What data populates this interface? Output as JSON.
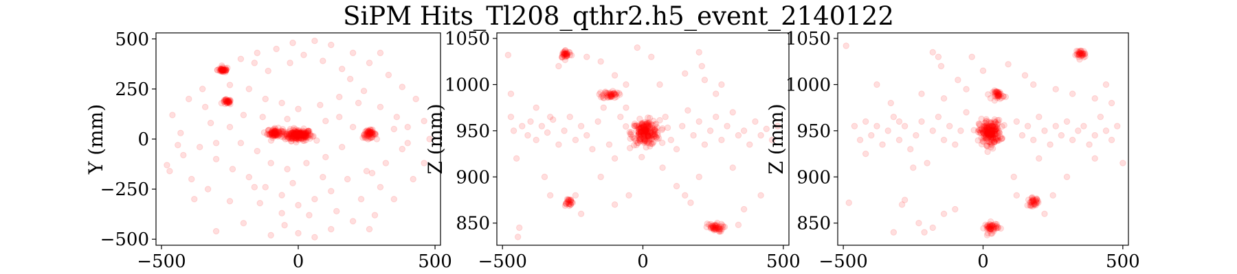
{
  "chart_data": {
    "type": "scatter",
    "title": "SiPM Hits_Tl208_qthr2.h5_event_2140122",
    "marker_color": "#ff0000",
    "marker_alpha": 0.13,
    "panels": [
      {
        "id": "xy",
        "xlabel": "",
        "ylabel": "Y (mm)",
        "xlim": [
          -520,
          520
        ],
        "ylim": [
          -530,
          530
        ],
        "xticks": [
          -500,
          0,
          500
        ],
        "xtick_labels": [
          "−500",
          "0",
          "500"
        ],
        "yticks": [
          -500,
          -250,
          0,
          250,
          500
        ],
        "ytick_labels": [
          "−500",
          "−250",
          "0",
          "250",
          "500"
        ],
        "clusters": [
          {
            "x": 0,
            "y": 20,
            "count": 200,
            "sx": 45,
            "sy": 25
          },
          {
            "x": -85,
            "y": 30,
            "count": 80,
            "sx": 25,
            "sy": 20
          },
          {
            "x": 260,
            "y": 25,
            "count": 60,
            "sx": 22,
            "sy": 18
          },
          {
            "x": -275,
            "y": 345,
            "count": 45,
            "sx": 18,
            "sy": 12
          },
          {
            "x": -260,
            "y": 185,
            "count": 35,
            "sx": 14,
            "sy": 12
          }
        ],
        "scatter_points": [
          [
            -470,
            -160
          ],
          [
            -480,
            -130
          ],
          [
            -430,
            30
          ],
          [
            -460,
            120
          ],
          [
            -400,
            200
          ],
          [
            -350,
            250
          ],
          [
            -320,
            80
          ],
          [
            -300,
            -20
          ],
          [
            -420,
            -80
          ],
          [
            -380,
            -300
          ],
          [
            -300,
            -460
          ],
          [
            -200,
            -420
          ],
          [
            -100,
            -480
          ],
          [
            -50,
            -430
          ],
          [
            0,
            -470
          ],
          [
            60,
            -490
          ],
          [
            120,
            -450
          ],
          [
            200,
            -410
          ],
          [
            280,
            -380
          ],
          [
            350,
            -300
          ],
          [
            420,
            -200
          ],
          [
            460,
            -120
          ],
          [
            480,
            0
          ],
          [
            460,
            90
          ],
          [
            430,
            200
          ],
          [
            380,
            260
          ],
          [
            330,
            320
          ],
          [
            260,
            380
          ],
          [
            200,
            430
          ],
          [
            120,
            470
          ],
          [
            60,
            490
          ],
          [
            -20,
            480
          ],
          [
            -80,
            450
          ],
          [
            -150,
            430
          ],
          [
            -210,
            400
          ],
          [
            -250,
            270
          ],
          [
            -180,
            250
          ],
          [
            -120,
            200
          ],
          [
            -60,
            180
          ],
          [
            0,
            150
          ],
          [
            80,
            170
          ],
          [
            150,
            210
          ],
          [
            220,
            180
          ],
          [
            300,
            160
          ],
          [
            360,
            110
          ],
          [
            400,
            60
          ],
          [
            380,
            -50
          ],
          [
            320,
            -120
          ],
          [
            250,
            -160
          ],
          [
            180,
            -200
          ],
          [
            120,
            -260
          ],
          [
            60,
            -300
          ],
          [
            0,
            -330
          ],
          [
            -60,
            -280
          ],
          [
            -120,
            -240
          ],
          [
            -180,
            -190
          ],
          [
            -240,
            -150
          ],
          [
            -300,
            -100
          ],
          [
            -360,
            -40
          ],
          [
            -150,
            -60
          ],
          [
            -100,
            -120
          ],
          [
            -40,
            -150
          ],
          [
            30,
            -120
          ],
          [
            100,
            -90
          ],
          [
            160,
            -40
          ],
          [
            200,
            60
          ],
          [
            150,
            110
          ],
          [
            100,
            90
          ],
          [
            -40,
            100
          ],
          [
            -130,
            110
          ],
          [
            -200,
            120
          ],
          [
            -250,
            60
          ],
          [
            -210,
            -20
          ],
          [
            -160,
            -240
          ],
          [
            -60,
            -370
          ],
          [
            40,
            -380
          ],
          [
            140,
            -360
          ],
          [
            230,
            -300
          ],
          [
            300,
            -240
          ],
          [
            400,
            -20
          ],
          [
            -30,
            380
          ],
          [
            20,
            420
          ],
          [
            90,
            390
          ],
          [
            160,
            350
          ],
          [
            -110,
            340
          ],
          [
            -160,
            380
          ],
          [
            -340,
            160
          ],
          [
            -390,
            -200
          ],
          [
            -250,
            -310
          ],
          [
            270,
            -170
          ],
          [
            260,
            -450
          ],
          [
            -140,
            -320
          ],
          [
            90,
            -190
          ],
          [
            -20,
            -220
          ],
          [
            190,
            300
          ],
          [
            240,
            240
          ],
          [
            350,
            50
          ],
          [
            -440,
            -30
          ],
          [
            -330,
            -250
          ],
          [
            300,
            430
          ]
        ]
      },
      {
        "id": "xz",
        "xlabel": "",
        "ylabel": "Z (mm)",
        "xlim": [
          -520,
          520
        ],
        "ylim": [
          826,
          1056
        ],
        "xticks": [
          -500,
          0,
          500
        ],
        "xtick_labels": [
          "−500",
          "0",
          "500"
        ],
        "yticks": [
          850,
          900,
          950,
          1000,
          1050
        ],
        "ytick_labels": [
          "850",
          "900",
          "950",
          "1000",
          "1050"
        ],
        "clusters": [
          {
            "x": 10,
            "y": 948,
            "count": 220,
            "sx": 45,
            "sy": 12
          },
          {
            "x": -275,
            "y": 1033,
            "count": 35,
            "sx": 18,
            "sy": 4
          },
          {
            "x": -115,
            "y": 989,
            "count": 45,
            "sx": 25,
            "sy": 4
          },
          {
            "x": -265,
            "y": 873,
            "count": 25,
            "sx": 15,
            "sy": 4
          },
          {
            "x": 255,
            "y": 845,
            "count": 50,
            "sx": 28,
            "sy": 4
          }
        ],
        "scatter_points": [
          [
            -480,
            1032
          ],
          [
            -470,
            990
          ],
          [
            -460,
            950
          ],
          [
            -450,
            920
          ],
          [
            -430,
            955
          ],
          [
            -410,
            945
          ],
          [
            -400,
            960
          ],
          [
            -380,
            940
          ],
          [
            -360,
            955
          ],
          [
            -340,
            948
          ],
          [
            -320,
            962
          ],
          [
            -300,
            935
          ],
          [
            -280,
            950
          ],
          [
            -260,
            965
          ],
          [
            -240,
            940
          ],
          [
            -220,
            955
          ],
          [
            -200,
            945
          ],
          [
            -180,
            930
          ],
          [
            -160,
            960
          ],
          [
            -140,
            975
          ],
          [
            -120,
            935
          ],
          [
            -100,
            920
          ],
          [
            -80,
            965
          ],
          [
            -60,
            975
          ],
          [
            80,
            965
          ],
          [
            100,
            940
          ],
          [
            120,
            930
          ],
          [
            140,
            955
          ],
          [
            160,
            972
          ],
          [
            180,
            945
          ],
          [
            200,
            960
          ],
          [
            220,
            935
          ],
          [
            240,
            950
          ],
          [
            260,
            965
          ],
          [
            280,
            940
          ],
          [
            300,
            955
          ],
          [
            320,
            970
          ],
          [
            340,
            945
          ],
          [
            360,
            950
          ],
          [
            380,
            935
          ],
          [
            400,
            960
          ],
          [
            420,
            945
          ],
          [
            440,
            952
          ],
          [
            460,
            940
          ],
          [
            480,
            955
          ],
          [
            -440,
            845
          ],
          [
            -445,
            835
          ],
          [
            -300,
            1020
          ],
          [
            -200,
            1030
          ],
          [
            -150,
            1025
          ],
          [
            200,
            1035
          ],
          [
            210,
            1020
          ],
          [
            -100,
            1010
          ],
          [
            -60,
            1000
          ],
          [
            60,
            1000
          ],
          [
            150,
            1012
          ],
          [
            220,
            1005
          ],
          [
            280,
            1000
          ],
          [
            -330,
            965
          ],
          [
            -380,
            975
          ],
          [
            -240,
            880
          ],
          [
            -220,
            860
          ],
          [
            -330,
            880
          ],
          [
            340,
            848
          ],
          [
            360,
            865
          ],
          [
            170,
            872
          ],
          [
            120,
            890
          ],
          [
            200,
            900
          ],
          [
            -100,
            870
          ],
          [
            -50,
            880
          ],
          [
            70,
            910
          ],
          [
            320,
            910
          ],
          [
            420,
            880
          ],
          [
            -20,
            1040
          ],
          [
            30,
            1030
          ],
          [
            -470,
            965
          ],
          [
            -350,
            900
          ],
          [
            -150,
            900
          ],
          [
            150,
            880
          ],
          [
            260,
            990
          ]
        ]
      },
      {
        "id": "yz",
        "xlabel": "",
        "ylabel": "Z (mm)",
        "xlim": [
          -520,
          520
        ],
        "ylim": [
          826,
          1056
        ],
        "xticks": [
          -500,
          0,
          500
        ],
        "xtick_labels": [
          "−500",
          "0",
          "500"
        ],
        "yticks": [
          850,
          900,
          950,
          1000,
          1050
        ],
        "ytick_labels": [
          "850",
          "900",
          "950",
          "1000",
          "1050"
        ],
        "clusters": [
          {
            "x": 25,
            "y": 948,
            "count": 220,
            "sx": 35,
            "sy": 12
          },
          {
            "x": 350,
            "y": 1033,
            "count": 35,
            "sx": 16,
            "sy": 4
          },
          {
            "x": 55,
            "y": 989,
            "count": 40,
            "sx": 18,
            "sy": 4
          },
          {
            "x": 180,
            "y": 873,
            "count": 35,
            "sx": 18,
            "sy": 4
          },
          {
            "x": 30,
            "y": 845,
            "count": 50,
            "sx": 22,
            "sy": 5
          }
        ],
        "scatter_points": [
          [
            -490,
            1042
          ],
          [
            -480,
            872
          ],
          [
            -460,
            955
          ],
          [
            -440,
            940
          ],
          [
            -420,
            960
          ],
          [
            -400,
            945
          ],
          [
            -380,
            955
          ],
          [
            -360,
            935
          ],
          [
            -340,
            950
          ],
          [
            -320,
            965
          ],
          [
            -300,
            940
          ],
          [
            -280,
            955
          ],
          [
            -260,
            930
          ],
          [
            -240,
            945
          ],
          [
            -220,
            960
          ],
          [
            -200,
            915
          ],
          [
            -180,
            950
          ],
          [
            -160,
            965
          ],
          [
            -140,
            940
          ],
          [
            -120,
            955
          ],
          [
            -100,
            935
          ],
          [
            -80,
            950
          ],
          [
            -60,
            970
          ],
          [
            120,
            960
          ],
          [
            140,
            945
          ],
          [
            160,
            955
          ],
          [
            180,
            940
          ],
          [
            200,
            965
          ],
          [
            220,
            950
          ],
          [
            240,
            935
          ],
          [
            260,
            955
          ],
          [
            280,
            945
          ],
          [
            300,
            960
          ],
          [
            320,
            940
          ],
          [
            340,
            950
          ],
          [
            360,
            955
          ],
          [
            380,
            935
          ],
          [
            400,
            945
          ],
          [
            420,
            965
          ],
          [
            440,
            950
          ],
          [
            460,
            940
          ],
          [
            480,
            955
          ],
          [
            500,
            915
          ],
          [
            -280,
            875
          ],
          [
            -290,
            870
          ],
          [
            -320,
            840
          ],
          [
            -230,
            850
          ],
          [
            -210,
            840
          ],
          [
            -180,
            1035
          ],
          [
            -160,
            1030
          ],
          [
            -150,
            1020
          ],
          [
            -90,
            1005
          ],
          [
            -60,
            995
          ],
          [
            -140,
            985
          ],
          [
            -220,
            990
          ],
          [
            -330,
            980
          ],
          [
            -380,
            1000
          ],
          [
            180,
            1000
          ],
          [
            150,
            1010
          ],
          [
            260,
            995
          ],
          [
            320,
            990
          ],
          [
            400,
            985
          ],
          [
            440,
            1000
          ],
          [
            460,
            980
          ],
          [
            -140,
            860
          ],
          [
            -100,
            865
          ],
          [
            120,
            880
          ],
          [
            250,
            880
          ],
          [
            -40,
            1030
          ],
          [
            90,
            1022
          ],
          [
            -420,
            925
          ],
          [
            -250,
            910
          ],
          [
            110,
            900
          ],
          [
            300,
            900
          ],
          [
            400,
            920
          ],
          [
            -300,
            960
          ],
          [
            0,
            1015
          ],
          [
            220,
            860
          ],
          [
            -180,
            845
          ],
          [
            200,
            920
          ]
        ]
      }
    ]
  }
}
